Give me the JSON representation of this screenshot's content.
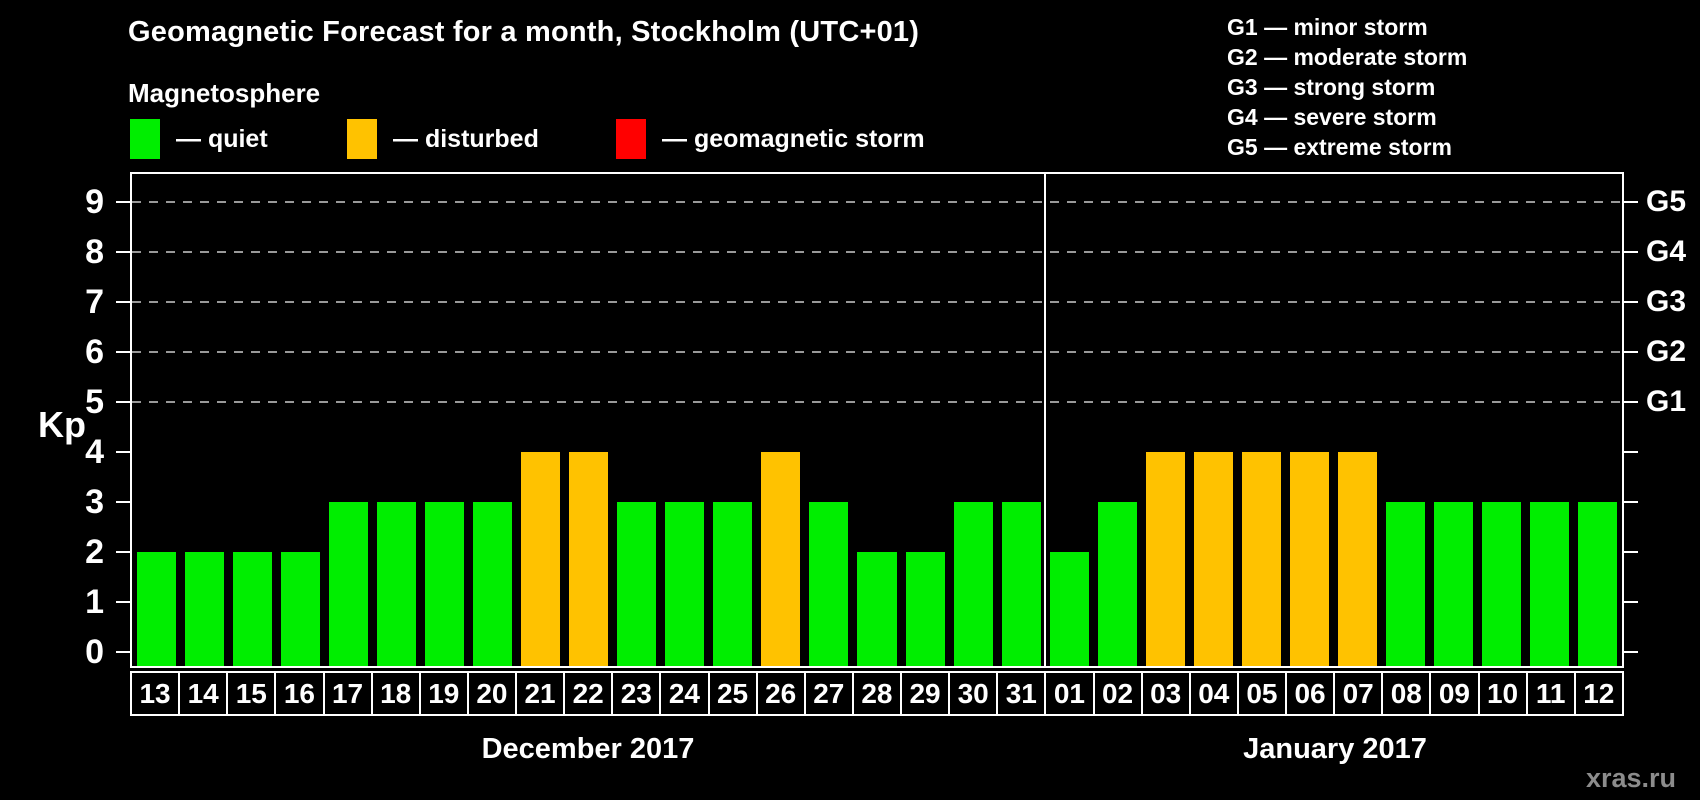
{
  "title": "Geomagnetic Forecast for a month, Stockholm (UTC+01)",
  "subtitle": "Magnetosphere",
  "watermark": "xras.ru",
  "colors": {
    "quiet": "#00EE00",
    "disturbed": "#FFC200",
    "storm": "#FF0000",
    "background": "#000000",
    "text": "#FFFFFF",
    "grid": "#999999",
    "watermark": "#8C8C8C"
  },
  "legend": {
    "items": [
      {
        "key": "quiet",
        "label": "— quiet"
      },
      {
        "key": "disturbed",
        "label": "— disturbed"
      },
      {
        "key": "storm",
        "label": "— geomagnetic storm"
      }
    ]
  },
  "g_legend": [
    "G1 — minor storm",
    "G2 — moderate storm",
    "G3 — strong storm",
    "G4 — severe storm",
    "G5 — extreme storm"
  ],
  "chart_data": {
    "type": "bar",
    "title": "Geomagnetic Forecast for a month, Stockholm (UTC+01)",
    "ylabel": "Kp",
    "ylim": [
      0,
      9.6
    ],
    "yticks": [
      0,
      1,
      2,
      3,
      4,
      5,
      6,
      7,
      8,
      9
    ],
    "grid": "dashed horizontal lines at Kp 5-9 only",
    "legend_position": "top",
    "g_levels": [
      {
        "label": "G1",
        "kp": 5
      },
      {
        "label": "G2",
        "kp": 6
      },
      {
        "label": "G3",
        "kp": 7
      },
      {
        "label": "G4",
        "kp": 8
      },
      {
        "label": "G5",
        "kp": 9
      }
    ],
    "months": [
      {
        "label": "December 2017",
        "days": [
          {
            "date": "13",
            "kp": 2,
            "status": "quiet"
          },
          {
            "date": "14",
            "kp": 2,
            "status": "quiet"
          },
          {
            "date": "15",
            "kp": 2,
            "status": "quiet"
          },
          {
            "date": "16",
            "kp": 2,
            "status": "quiet"
          },
          {
            "date": "17",
            "kp": 3,
            "status": "quiet"
          },
          {
            "date": "18",
            "kp": 3,
            "status": "quiet"
          },
          {
            "date": "19",
            "kp": 3,
            "status": "quiet"
          },
          {
            "date": "20",
            "kp": 3,
            "status": "quiet"
          },
          {
            "date": "21",
            "kp": 4,
            "status": "disturbed"
          },
          {
            "date": "22",
            "kp": 4,
            "status": "disturbed"
          },
          {
            "date": "23",
            "kp": 3,
            "status": "quiet"
          },
          {
            "date": "24",
            "kp": 3,
            "status": "quiet"
          },
          {
            "date": "25",
            "kp": 3,
            "status": "quiet"
          },
          {
            "date": "26",
            "kp": 4,
            "status": "disturbed"
          },
          {
            "date": "27",
            "kp": 3,
            "status": "quiet"
          },
          {
            "date": "28",
            "kp": 2,
            "status": "quiet"
          },
          {
            "date": "29",
            "kp": 2,
            "status": "quiet"
          },
          {
            "date": "30",
            "kp": 3,
            "status": "quiet"
          },
          {
            "date": "31",
            "kp": 3,
            "status": "quiet"
          }
        ]
      },
      {
        "label": "January 2017",
        "days": [
          {
            "date": "01",
            "kp": 2,
            "status": "quiet"
          },
          {
            "date": "02",
            "kp": 3,
            "status": "quiet"
          },
          {
            "date": "03",
            "kp": 4,
            "status": "disturbed"
          },
          {
            "date": "04",
            "kp": 4,
            "status": "disturbed"
          },
          {
            "date": "05",
            "kp": 4,
            "status": "disturbed"
          },
          {
            "date": "06",
            "kp": 4,
            "status": "disturbed"
          },
          {
            "date": "07",
            "kp": 4,
            "status": "disturbed"
          },
          {
            "date": "08",
            "kp": 3,
            "status": "quiet"
          },
          {
            "date": "09",
            "kp": 3,
            "status": "quiet"
          },
          {
            "date": "10",
            "kp": 3,
            "status": "quiet"
          },
          {
            "date": "11",
            "kp": 3,
            "status": "quiet"
          },
          {
            "date": "12",
            "kp": 3,
            "status": "quiet"
          }
        ]
      }
    ]
  }
}
